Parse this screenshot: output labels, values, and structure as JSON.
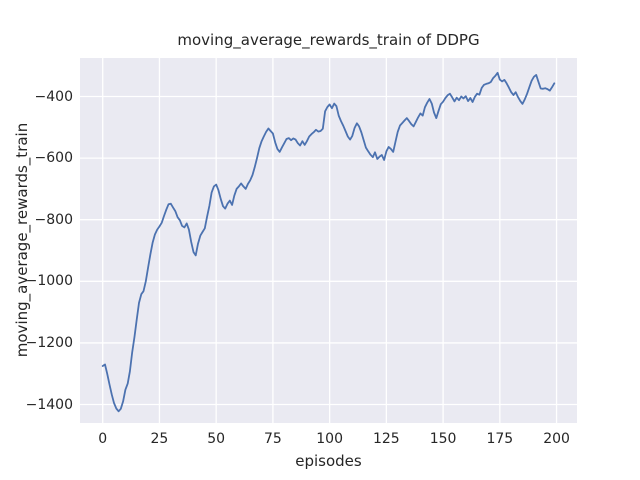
{
  "chart_data": {
    "type": "line",
    "title": "moving_average_rewards_train of DDPG",
    "xlabel": "episodes",
    "ylabel": "moving_average_rewards_train",
    "x_ticks": [
      0,
      25,
      50,
      75,
      100,
      125,
      150,
      175,
      200
    ],
    "y_ticks": [
      -400,
      -600,
      -800,
      -1000,
      -1200,
      -1400
    ],
    "xlim": [
      -10,
      209
    ],
    "ylim": [
      -1460,
      -275
    ],
    "grid": true,
    "legend_position": "none",
    "style": {
      "plot_bg": "#EAEAF2",
      "grid_color": "#FFFFFF",
      "line_color": "#4C72B0",
      "text_color": "#262626",
      "line_width": 1.8,
      "grid_width": 1.3
    },
    "series": [
      {
        "name": "moving_average_rewards_train",
        "x_start": 0,
        "x_step": 1,
        "values": [
          -1275,
          -1270,
          -1300,
          -1335,
          -1368,
          -1395,
          -1413,
          -1422,
          -1414,
          -1390,
          -1352,
          -1332,
          -1292,
          -1230,
          -1180,
          -1125,
          -1070,
          -1042,
          -1032,
          -1000,
          -955,
          -912,
          -875,
          -848,
          -832,
          -822,
          -810,
          -788,
          -768,
          -750,
          -748,
          -760,
          -772,
          -792,
          -802,
          -820,
          -825,
          -812,
          -832,
          -872,
          -905,
          -916,
          -878,
          -852,
          -840,
          -828,
          -790,
          -755,
          -712,
          -692,
          -686,
          -704,
          -732,
          -756,
          -764,
          -748,
          -738,
          -752,
          -722,
          -700,
          -692,
          -682,
          -692,
          -700,
          -684,
          -672,
          -655,
          -630,
          -600,
          -568,
          -545,
          -530,
          -515,
          -504,
          -512,
          -520,
          -549,
          -570,
          -580,
          -565,
          -552,
          -538,
          -535,
          -542,
          -536,
          -540,
          -552,
          -559,
          -545,
          -557,
          -545,
          -530,
          -522,
          -516,
          -508,
          -514,
          -512,
          -505,
          -448,
          -434,
          -426,
          -438,
          -423,
          -431,
          -462,
          -480,
          -495,
          -512,
          -530,
          -540,
          -528,
          -502,
          -487,
          -497,
          -517,
          -542,
          -566,
          -578,
          -589,
          -597,
          -581,
          -603,
          -595,
          -590,
          -606,
          -578,
          -564,
          -570,
          -580,
          -548,
          -515,
          -494,
          -486,
          -478,
          -470,
          -480,
          -490,
          -497,
          -482,
          -468,
          -455,
          -462,
          -435,
          -420,
          -408,
          -423,
          -452,
          -470,
          -446,
          -425,
          -417,
          -405,
          -396,
          -391,
          -403,
          -416,
          -404,
          -412,
          -400,
          -406,
          -399,
          -415,
          -405,
          -418,
          -401,
          -391,
          -394,
          -372,
          -362,
          -359,
          -357,
          -353,
          -341,
          -333,
          -323,
          -345,
          -351,
          -346,
          -357,
          -371,
          -386,
          -395,
          -386,
          -402,
          -415,
          -424,
          -409,
          -391,
          -370,
          -349,
          -336,
          -330,
          -352,
          -374,
          -375,
          -373,
          -376,
          -381,
          -370,
          -357
        ]
      }
    ]
  }
}
